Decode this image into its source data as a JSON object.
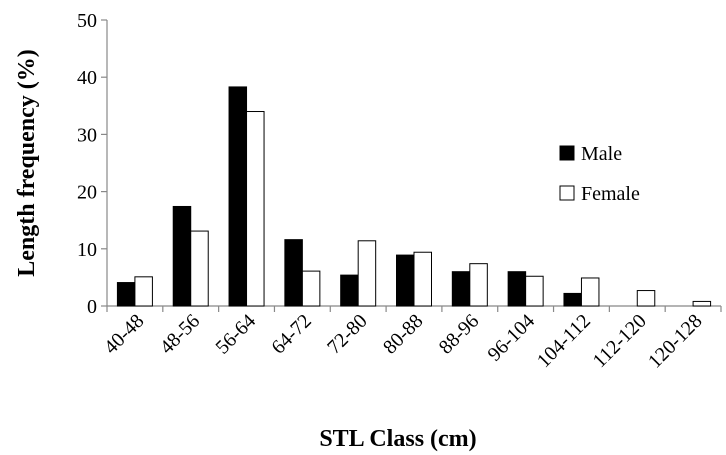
{
  "chart_data": {
    "type": "bar",
    "title": "",
    "xlabel": "STL Class (cm)",
    "ylabel": "Length frequency (%)",
    "ylim": [
      0,
      50
    ],
    "yticks": [
      0,
      10,
      20,
      30,
      40,
      50
    ],
    "grid": false,
    "legend_position": "right",
    "categories": [
      "40-48",
      "48-56",
      "56-64",
      "64-72",
      "72-80",
      "80-88",
      "88-96",
      "96-104",
      "104-112",
      "112-120",
      "120-128"
    ],
    "series": [
      {
        "name": "Male",
        "color": "#000000",
        "values": [
          4.1,
          17.4,
          38.3,
          11.6,
          5.4,
          8.9,
          6.0,
          6.0,
          2.2,
          0.0,
          0.0
        ]
      },
      {
        "name": "Female",
        "color": "#ffffff",
        "values": [
          5.1,
          13.1,
          34.0,
          6.1,
          11.4,
          9.4,
          7.4,
          5.2,
          4.9,
          2.7,
          0.8
        ]
      }
    ]
  }
}
